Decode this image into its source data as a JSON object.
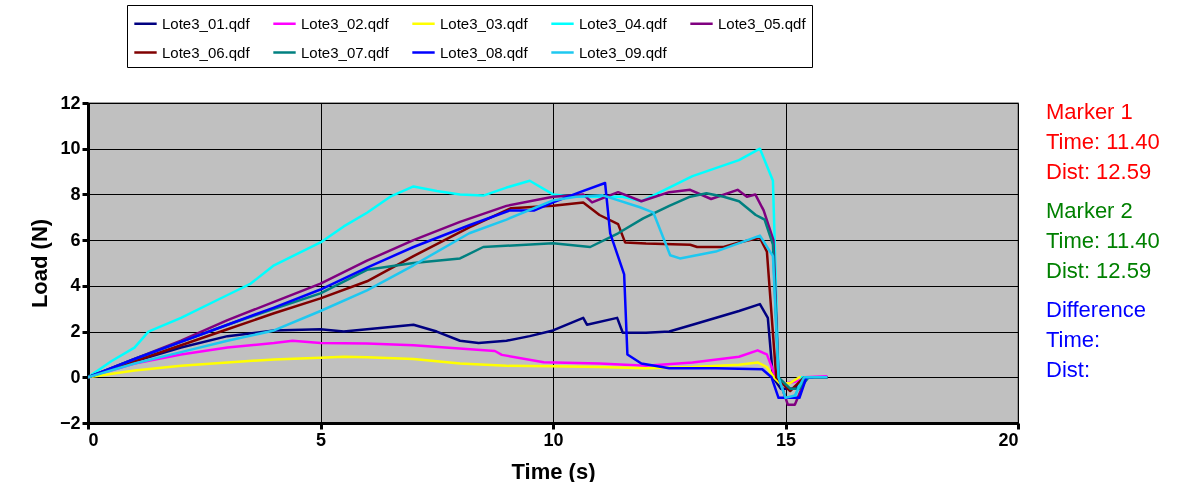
{
  "chart_data": {
    "type": "line",
    "xlabel": "Time (s)",
    "ylabel": "Load (N)",
    "xlim": [
      0,
      20
    ],
    "xticks": [
      0,
      5,
      10,
      15,
      20
    ],
    "ylim": [
      -2,
      12
    ],
    "yticks": [
      -2,
      0,
      2,
      4,
      6,
      8,
      10,
      12
    ],
    "grid": true,
    "legend": "top",
    "annotations": [
      "Marker 1",
      "Time: 11.40",
      "Dist: 12.59",
      "Marker 2",
      "Time: 11.40",
      "Dist: 12.59",
      "Difference",
      "Time:",
      "Dist:"
    ],
    "series": [
      {
        "name": "Lote3_01.qdf",
        "color": "#000080",
        "x": [
          0,
          1,
          2,
          3,
          4,
          5,
          5.5,
          6,
          7,
          7.5,
          8,
          8.4,
          9,
          9.5,
          10,
          10.65,
          10.73,
          11.38,
          11.5,
          12,
          12.5,
          13,
          14,
          14.45,
          14.62,
          14.73,
          14.9,
          15.2,
          15.45,
          15.9
        ],
        "values": [
          0,
          0.7,
          1.3,
          1.8,
          2.05,
          2.1,
          2.0,
          2.1,
          2.3,
          2.0,
          1.6,
          1.5,
          1.6,
          1.8,
          2.05,
          2.6,
          2.3,
          2.6,
          1.95,
          1.95,
          2.0,
          2.3,
          2.9,
          3.2,
          2.6,
          0,
          -0.5,
          -0.5,
          0,
          0
        ]
      },
      {
        "name": "Lote3_02.qdf",
        "color": "#ff00ff",
        "x": [
          0,
          1,
          2,
          3,
          4,
          4.4,
          5,
          6,
          7,
          8.75,
          8.9,
          9.8,
          11,
          12,
          13,
          14,
          14.4,
          14.6,
          14.75,
          14.9,
          15.2,
          15.4,
          15.9
        ],
        "values": [
          0,
          0.6,
          1.0,
          1.3,
          1.5,
          1.6,
          1.5,
          1.48,
          1.4,
          1.15,
          0.98,
          0.66,
          0.6,
          0.5,
          0.65,
          0.9,
          1.18,
          1.0,
          0.2,
          -0.3,
          -0.2,
          0,
          0.05
        ]
      },
      {
        "name": "Lote3_03.qdf",
        "color": "#ffff00",
        "x": [
          0,
          1,
          2,
          3,
          4,
          5,
          5.5,
          6,
          7,
          8,
          9,
          10,
          11,
          12,
          13,
          14,
          14.4,
          14.6,
          14.75,
          14.9,
          15.1,
          15.3,
          15.6
        ],
        "values": [
          0,
          0.3,
          0.5,
          0.65,
          0.78,
          0.85,
          0.9,
          0.88,
          0.8,
          0.6,
          0.5,
          0.48,
          0.45,
          0.4,
          0.45,
          0.55,
          0.65,
          0.45,
          0,
          -0.3,
          -0.25,
          0,
          0
        ]
      },
      {
        "name": "Lote3_04.qdf",
        "color": "#00ffff",
        "x": [
          0,
          0.5,
          1,
          1.3,
          2,
          3,
          3.5,
          4,
          5,
          5.5,
          6,
          6.5,
          7,
          7.5,
          8,
          8.5,
          9,
          9.5,
          10,
          10.5,
          11.5,
          11.9,
          12.5,
          13,
          14,
          14.45,
          14.73,
          14.85,
          15.0,
          15.2,
          15.35,
          15.9
        ],
        "values": [
          0,
          0.7,
          1.3,
          2.0,
          2.6,
          3.6,
          4.1,
          4.9,
          5.9,
          6.6,
          7.2,
          7.9,
          8.35,
          8.15,
          8.0,
          7.95,
          8.3,
          8.6,
          8.0,
          7.9,
          7.9,
          7.7,
          8.3,
          8.8,
          9.5,
          10.0,
          8.6,
          0,
          -0.9,
          -0.9,
          0,
          0
        ]
      },
      {
        "name": "Lote3_05.qdf",
        "color": "#800080",
        "x": [
          0,
          1,
          2,
          3,
          4,
          5,
          6,
          7,
          8,
          9,
          10,
          10.65,
          10.84,
          11.4,
          11.9,
          12.5,
          12.95,
          13.4,
          13.97,
          14.17,
          14.35,
          14.53,
          14.74,
          14.85,
          15.05,
          15.2,
          15.45,
          15.9
        ],
        "values": [
          0,
          0.8,
          1.6,
          2.5,
          3.3,
          4.1,
          5.1,
          6.0,
          6.8,
          7.5,
          7.9,
          8.0,
          7.65,
          8.1,
          7.7,
          8.1,
          8.2,
          7.8,
          8.2,
          7.9,
          8.0,
          7.3,
          6.0,
          0,
          -1.2,
          -1.2,
          0,
          0
        ]
      },
      {
        "name": "Lote3_06.qdf",
        "color": "#800000",
        "x": [
          0,
          1,
          2,
          3,
          4,
          5,
          6,
          7,
          8.2,
          9.1,
          10,
          10.65,
          11.0,
          11.4,
          11.55,
          12,
          12.95,
          13.1,
          13.67,
          14.0,
          14.45,
          14.6,
          14.8,
          15.1,
          15.4,
          15.9
        ],
        "values": [
          0,
          0.7,
          1.4,
          2.1,
          2.8,
          3.45,
          4.2,
          5.3,
          6.56,
          7.4,
          7.5,
          7.65,
          7.1,
          6.7,
          5.9,
          5.85,
          5.8,
          5.7,
          5.7,
          5.9,
          6.1,
          5.5,
          0,
          -0.6,
          0,
          0
        ]
      },
      {
        "name": "Lote3_07.qdf",
        "color": "#008080",
        "x": [
          0,
          1,
          2,
          3,
          4,
          5,
          6,
          7,
          8,
          8.5,
          10,
          10.8,
          11.4,
          11.94,
          12.5,
          12.95,
          13.3,
          13.67,
          14.0,
          14.36,
          14.55,
          14.73,
          14.85,
          15.1,
          15.3,
          15.5,
          15.9
        ],
        "values": [
          0,
          0.8,
          1.55,
          2.3,
          3.0,
          3.67,
          4.7,
          5.0,
          5.2,
          5.7,
          5.86,
          5.7,
          6.3,
          6.95,
          7.5,
          7.9,
          8.05,
          7.9,
          7.7,
          7.1,
          6.9,
          5.8,
          0,
          -0.5,
          -0.5,
          0,
          0
        ]
      },
      {
        "name": "Lote3_08.qdf",
        "color": "#0000ff",
        "x": [
          0,
          1,
          2,
          3,
          4,
          5,
          6,
          7,
          8.2,
          9.07,
          9.6,
          10,
          10.58,
          11.12,
          11.23,
          11.53,
          11.6,
          11.9,
          12.5,
          13.5,
          14.5,
          14.7,
          14.85,
          15.3,
          15.45,
          15.6
        ],
        "values": [
          0,
          0.8,
          1.55,
          2.3,
          3.05,
          3.84,
          4.8,
          5.7,
          6.65,
          7.3,
          7.3,
          7.65,
          8.1,
          8.5,
          6.3,
          4.5,
          1.0,
          0.6,
          0.4,
          0.4,
          0.35,
          0,
          -0.9,
          -0.9,
          0,
          0
        ]
      },
      {
        "name": "Lote3_09.qdf",
        "color": "#1ec8f0",
        "x": [
          0,
          1,
          2,
          3,
          4,
          5,
          6,
          7,
          8.2,
          9,
          10,
          10.5,
          11.07,
          11.87,
          12.16,
          12.52,
          12.73,
          13.5,
          14.45,
          14.73,
          14.85,
          15.0,
          15.2,
          15.4,
          15.9
        ],
        "values": [
          0,
          0.6,
          1.1,
          1.6,
          2.05,
          2.9,
          3.8,
          4.9,
          6.3,
          6.9,
          7.74,
          7.9,
          7.96,
          7.44,
          7.2,
          5.34,
          5.2,
          5.5,
          6.2,
          5.3,
          0,
          -0.9,
          -0.8,
          0,
          0
        ]
      }
    ]
  }
}
